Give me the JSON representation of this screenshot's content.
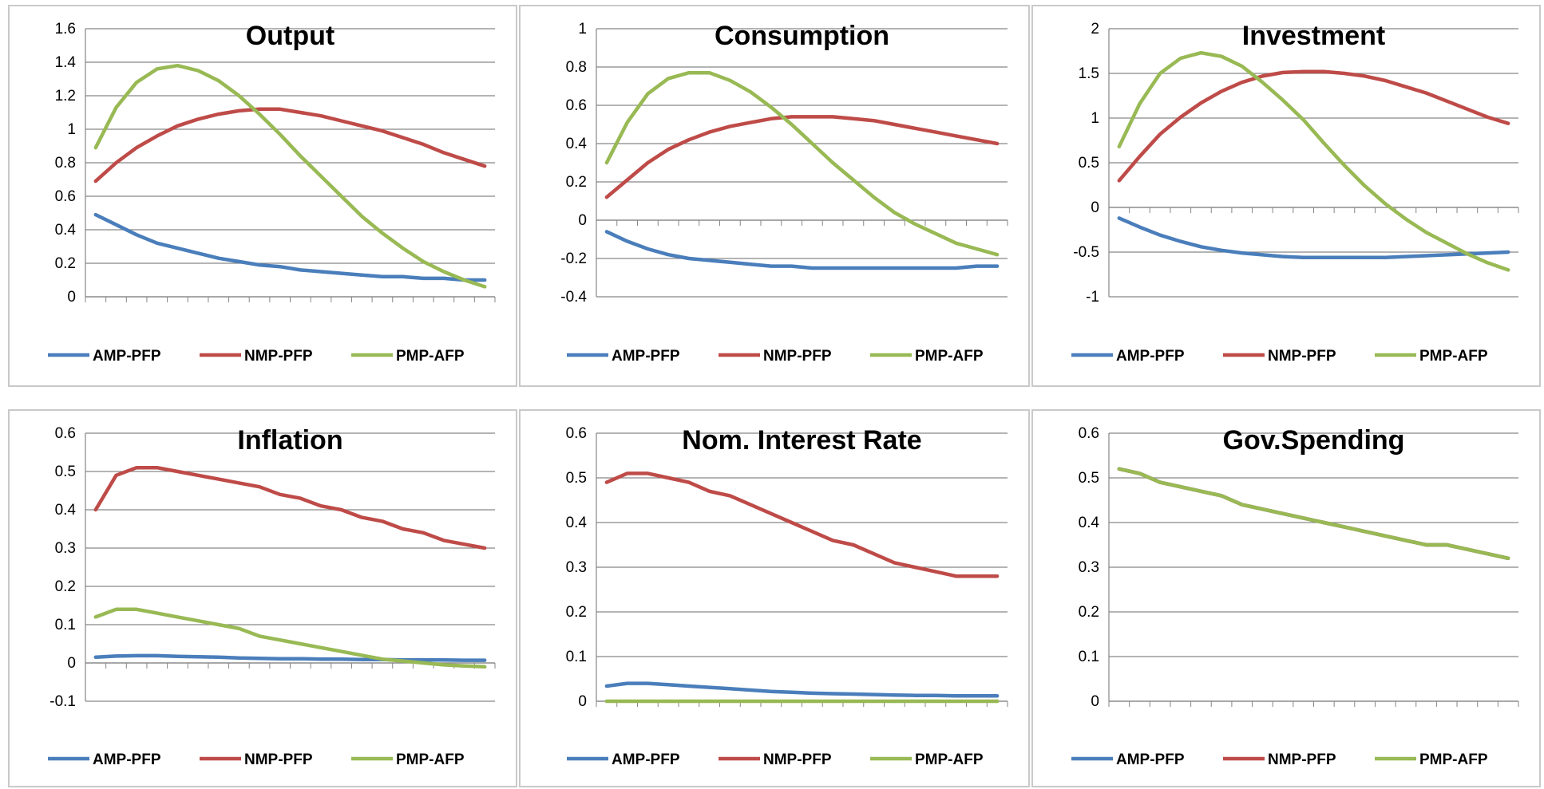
{
  "legend": [
    "AMP-PFP",
    "NMP-PFP",
    "PMP-AFP"
  ],
  "colors": {
    "AMP-PFP": "#4a7ebb",
    "NMP-PFP": "#be4b48",
    "PMP-AFP": "#98b954",
    "grid": "#868686",
    "axis": "#868686"
  },
  "chart_data": [
    {
      "type": "line",
      "title": "Output",
      "ylim": [
        0,
        1.6
      ],
      "yticks": [
        "0",
        "0.2",
        "0.4",
        "0.6",
        "0.8",
        "1",
        "1.2",
        "1.4",
        "1.6"
      ],
      "x": [
        1,
        2,
        3,
        4,
        5,
        6,
        7,
        8,
        9,
        10,
        11,
        12,
        13,
        14,
        15,
        16,
        17,
        18,
        19,
        20
      ],
      "series": [
        {
          "name": "AMP-PFP",
          "values": [
            0.49,
            0.43,
            0.37,
            0.32,
            0.29,
            0.26,
            0.23,
            0.21,
            0.19,
            0.18,
            0.16,
            0.15,
            0.14,
            0.13,
            0.12,
            0.12,
            0.11,
            0.11,
            0.1,
            0.1
          ]
        },
        {
          "name": "NMP-PFP",
          "values": [
            0.69,
            0.8,
            0.89,
            0.96,
            1.02,
            1.06,
            1.09,
            1.11,
            1.12,
            1.12,
            1.1,
            1.08,
            1.05,
            1.02,
            0.99,
            0.95,
            0.91,
            0.86,
            0.82,
            0.78
          ]
        },
        {
          "name": "PMP-AFP",
          "values": [
            0.89,
            1.13,
            1.28,
            1.36,
            1.38,
            1.35,
            1.29,
            1.2,
            1.09,
            0.97,
            0.84,
            0.72,
            0.6,
            0.48,
            0.38,
            0.29,
            0.21,
            0.15,
            0.1,
            0.06
          ]
        }
      ],
      "grid": true,
      "legend_position": "bottom"
    },
    {
      "type": "line",
      "title": "Consumption",
      "ylim": [
        -0.4,
        1
      ],
      "yticks": [
        "-0.4",
        "-0.2",
        "0",
        "0.2",
        "0.4",
        "0.6",
        "0.8",
        "1"
      ],
      "x": [
        1,
        2,
        3,
        4,
        5,
        6,
        7,
        8,
        9,
        10,
        11,
        12,
        13,
        14,
        15,
        16,
        17,
        18,
        19,
        20
      ],
      "series": [
        {
          "name": "AMP-PFP",
          "values": [
            -0.06,
            -0.11,
            -0.15,
            -0.18,
            -0.2,
            -0.21,
            -0.22,
            -0.23,
            -0.24,
            -0.24,
            -0.25,
            -0.25,
            -0.25,
            -0.25,
            -0.25,
            -0.25,
            -0.25,
            -0.25,
            -0.24,
            -0.24
          ]
        },
        {
          "name": "NMP-PFP",
          "values": [
            0.12,
            0.21,
            0.3,
            0.37,
            0.42,
            0.46,
            0.49,
            0.51,
            0.53,
            0.54,
            0.54,
            0.54,
            0.53,
            0.52,
            0.5,
            0.48,
            0.46,
            0.44,
            0.42,
            0.4
          ]
        },
        {
          "name": "PMP-AFP",
          "values": [
            0.3,
            0.51,
            0.66,
            0.74,
            0.77,
            0.77,
            0.73,
            0.67,
            0.59,
            0.5,
            0.4,
            0.3,
            0.21,
            0.12,
            0.04,
            -0.02,
            -0.07,
            -0.12,
            -0.15,
            -0.18
          ]
        }
      ],
      "grid": true,
      "legend_position": "bottom"
    },
    {
      "type": "line",
      "title": "Investment",
      "ylim": [
        -1,
        2
      ],
      "yticks": [
        "-1",
        "-0.5",
        "0",
        "0.5",
        "1",
        "1.5",
        "2"
      ],
      "x": [
        1,
        2,
        3,
        4,
        5,
        6,
        7,
        8,
        9,
        10,
        11,
        12,
        13,
        14,
        15,
        16,
        17,
        18,
        19,
        20
      ],
      "series": [
        {
          "name": "AMP-PFP",
          "values": [
            -0.12,
            -0.22,
            -0.31,
            -0.38,
            -0.44,
            -0.48,
            -0.51,
            -0.53,
            -0.55,
            -0.56,
            -0.56,
            -0.56,
            -0.56,
            -0.56,
            -0.55,
            -0.54,
            -0.53,
            -0.52,
            -0.51,
            -0.5
          ]
        },
        {
          "name": "NMP-PFP",
          "values": [
            0.3,
            0.57,
            0.82,
            1.01,
            1.17,
            1.3,
            1.4,
            1.47,
            1.51,
            1.52,
            1.52,
            1.5,
            1.47,
            1.42,
            1.35,
            1.28,
            1.19,
            1.1,
            1.01,
            0.94
          ]
        },
        {
          "name": "PMP-AFP",
          "values": [
            0.68,
            1.16,
            1.5,
            1.67,
            1.73,
            1.69,
            1.58,
            1.4,
            1.2,
            0.98,
            0.72,
            0.47,
            0.24,
            0.04,
            -0.13,
            -0.28,
            -0.4,
            -0.52,
            -0.62,
            -0.7
          ]
        }
      ],
      "grid": true,
      "legend_position": "bottom"
    },
    {
      "type": "line",
      "title": "Inflation",
      "ylim": [
        -0.1,
        0.6
      ],
      "yticks": [
        "-0.1",
        "0",
        "0.1",
        "0.2",
        "0.3",
        "0.4",
        "0.5",
        "0.6"
      ],
      "x": [
        1,
        2,
        3,
        4,
        5,
        6,
        7,
        8,
        9,
        10,
        11,
        12,
        13,
        14,
        15,
        16,
        17,
        18,
        19,
        20
      ],
      "series": [
        {
          "name": "AMP-PFP",
          "values": [
            0.015,
            0.018,
            0.019,
            0.019,
            0.017,
            0.016,
            0.015,
            0.013,
            0.012,
            0.011,
            0.011,
            0.01,
            0.01,
            0.009,
            0.009,
            0.008,
            0.008,
            0.008,
            0.007,
            0.007
          ]
        },
        {
          "name": "NMP-PFP",
          "values": [
            0.4,
            0.49,
            0.51,
            0.51,
            0.5,
            0.49,
            0.48,
            0.47,
            0.46,
            0.44,
            0.43,
            0.41,
            0.4,
            0.38,
            0.37,
            0.35,
            0.34,
            0.32,
            0.31,
            0.3
          ]
        },
        {
          "name": "PMP-AFP",
          "values": [
            0.12,
            0.14,
            0.14,
            0.13,
            0.12,
            0.11,
            0.1,
            0.09,
            0.07,
            0.06,
            0.05,
            0.04,
            0.03,
            0.02,
            0.01,
            0.005,
            0.0,
            -0.005,
            -0.008,
            -0.01
          ]
        }
      ],
      "grid": true,
      "legend_position": "bottom"
    },
    {
      "type": "line",
      "title": "Nom. Interest Rate",
      "ylim": [
        0,
        0.6
      ],
      "yticks": [
        "0",
        "0.1",
        "0.2",
        "0.3",
        "0.4",
        "0.5",
        "0.6"
      ],
      "x": [
        1,
        2,
        3,
        4,
        5,
        6,
        7,
        8,
        9,
        10,
        11,
        12,
        13,
        14,
        15,
        16,
        17,
        18,
        19,
        20
      ],
      "series": [
        {
          "name": "AMP-PFP",
          "values": [
            0.034,
            0.04,
            0.04,
            0.037,
            0.034,
            0.031,
            0.028,
            0.025,
            0.022,
            0.02,
            0.018,
            0.017,
            0.016,
            0.015,
            0.014,
            0.013,
            0.013,
            0.012,
            0.012,
            0.012
          ]
        },
        {
          "name": "NMP-PFP",
          "values": [
            0.49,
            0.51,
            0.51,
            0.5,
            0.49,
            0.47,
            0.46,
            0.44,
            0.42,
            0.4,
            0.38,
            0.36,
            0.35,
            0.33,
            0.31,
            0.3,
            0.29,
            0.28,
            0.28,
            0.28
          ]
        },
        {
          "name": "PMP-AFP",
          "values": [
            0,
            0,
            0,
            0,
            0,
            0,
            0,
            0,
            0,
            0,
            0,
            0,
            0,
            0,
            0,
            0,
            0,
            0,
            0,
            0
          ]
        }
      ],
      "grid": true,
      "legend_position": "bottom"
    },
    {
      "type": "line",
      "title": "Gov.Spending",
      "ylim": [
        0,
        0.6
      ],
      "yticks": [
        "0",
        "0.1",
        "0.2",
        "0.3",
        "0.4",
        "0.5",
        "0.6"
      ],
      "x": [
        1,
        2,
        3,
        4,
        5,
        6,
        7,
        8,
        9,
        10,
        11,
        12,
        13,
        14,
        15,
        16,
        17,
        18,
        19,
        20
      ],
      "series": [
        {
          "name": "AMP-PFP",
          "values": [
            0.52,
            0.51,
            0.49,
            0.48,
            0.47,
            0.46,
            0.44,
            0.43,
            0.42,
            0.41,
            0.4,
            0.39,
            0.38,
            0.37,
            0.36,
            0.35,
            0.35,
            0.34,
            0.33,
            0.32
          ]
        },
        {
          "name": "NMP-PFP",
          "values": [
            0.52,
            0.51,
            0.49,
            0.48,
            0.47,
            0.46,
            0.44,
            0.43,
            0.42,
            0.41,
            0.4,
            0.39,
            0.38,
            0.37,
            0.36,
            0.35,
            0.35,
            0.34,
            0.33,
            0.32
          ]
        },
        {
          "name": "PMP-AFP",
          "values": [
            0.52,
            0.51,
            0.49,
            0.48,
            0.47,
            0.46,
            0.44,
            0.43,
            0.42,
            0.41,
            0.4,
            0.39,
            0.38,
            0.37,
            0.36,
            0.35,
            0.35,
            0.34,
            0.33,
            0.32
          ]
        }
      ],
      "grid": true,
      "legend_position": "bottom"
    }
  ]
}
